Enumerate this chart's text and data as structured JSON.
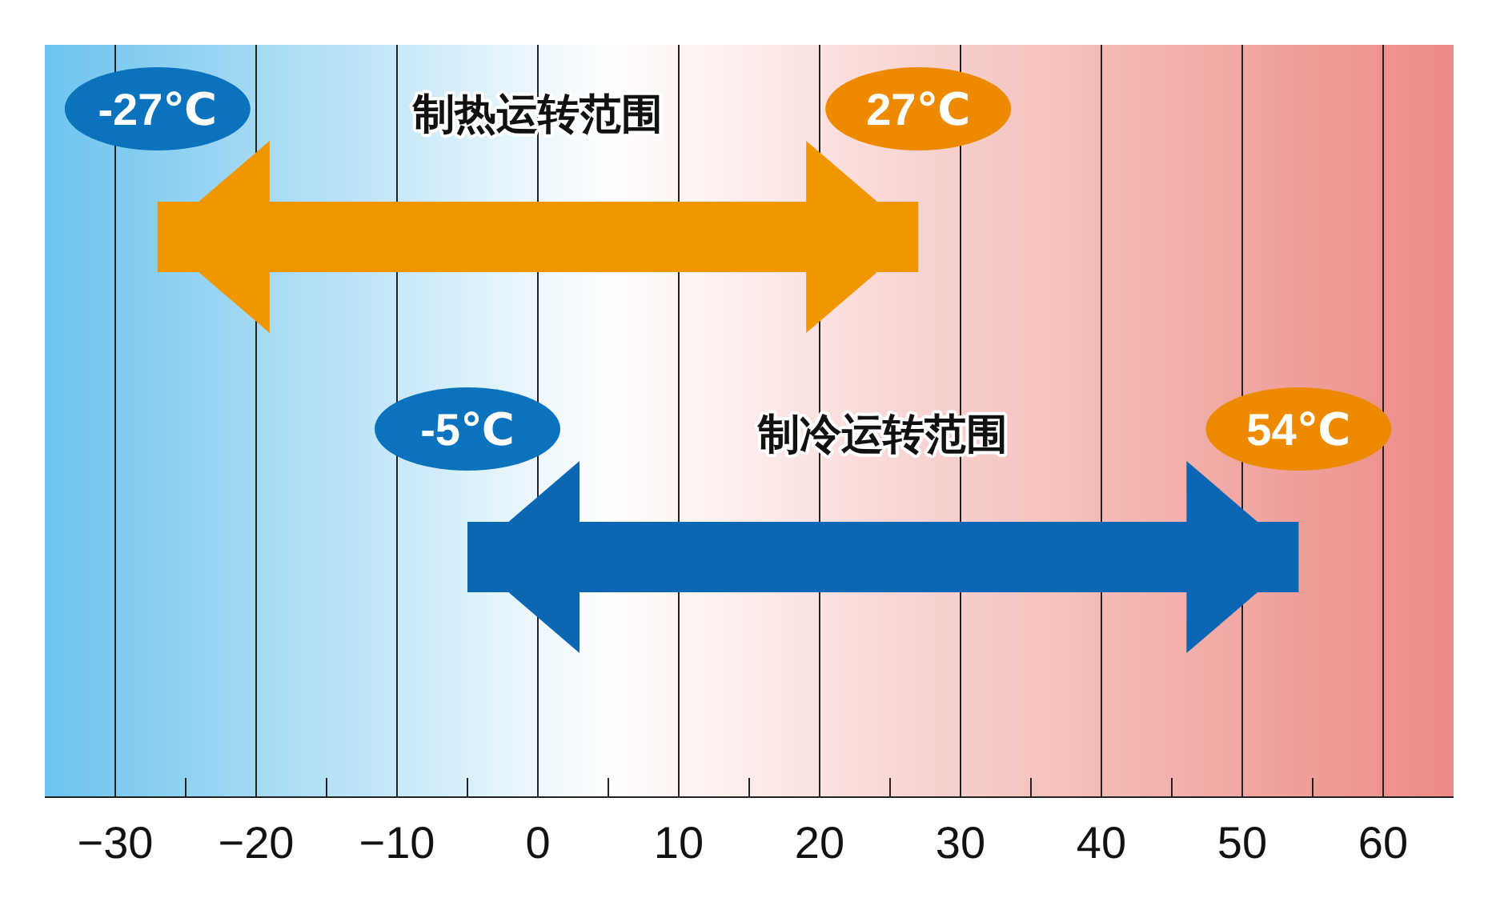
{
  "chart_data": {
    "type": "bar",
    "orientation": "horizontal",
    "categories": [
      "制热运转范围",
      "制冷运转范围"
    ],
    "base": [
      -27,
      -5
    ],
    "values": [
      54,
      59
    ],
    "colors": [
      "#f29600",
      "#0b66b4"
    ],
    "xlim": [
      -35,
      65
    ],
    "xticks": [
      {
        "value": -30,
        "label": "−30"
      },
      {
        "value": -25,
        "label": null
      },
      {
        "value": -20,
        "label": "−20"
      },
      {
        "value": -15,
        "label": null
      },
      {
        "value": -10,
        "label": "−10"
      },
      {
        "value": -5,
        "label": null
      },
      0,
      {
        "value": 5,
        "label": null
      },
      10,
      {
        "value": 15,
        "label": null
      },
      20,
      {
        "value": 25,
        "label": null
      },
      30,
      {
        "value": 35,
        "label": null
      },
      40,
      {
        "value": 45,
        "label": null
      },
      50,
      {
        "value": 55,
        "label": null
      },
      60
    ],
    "grid": "x",
    "annotations": [
      {
        "text": "-27℃",
        "x": -27,
        "y": "制热运转范围"
      },
      {
        "text": "27℃",
        "x": 27,
        "y": "制热运转范围"
      },
      {
        "text": "-5℃",
        "x": -5,
        "y": "制冷运转范围"
      },
      {
        "text": "54℃",
        "x": 54,
        "y": "制冷运转范围"
      }
    ]
  }
}
